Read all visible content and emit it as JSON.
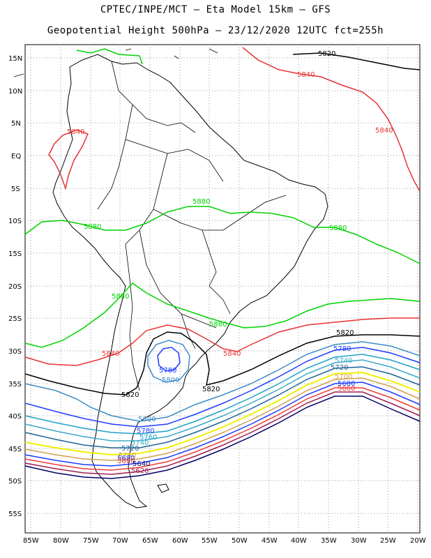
{
  "header": {
    "line1": "CPTEC/INPE/MCT —  Eta Model 15km — GFS",
    "line2": "Geopotential Height 500hPa — 23/12/2020 12UTC fct=255h"
  },
  "axes": {
    "lat_ticks": [
      "15N",
      "10N",
      "5N",
      "EQ",
      "5S",
      "10S",
      "15S",
      "20S",
      "25S",
      "30S",
      "35S",
      "40S",
      "45S",
      "50S",
      "55S"
    ],
    "lon_ticks": [
      "85W",
      "80W",
      "75W",
      "70W",
      "65W",
      "60W",
      "55W",
      "50W",
      "45W",
      "40W",
      "35W",
      "30W",
      "25W",
      "20W"
    ]
  },
  "colors": {
    "c5880": "#00d200",
    "c5840": "#e63232",
    "c5820": "#000000",
    "c5800": "#3c8cc8",
    "c5780": "#1e3cff",
    "c5760": "#1ea0c8",
    "c5740": "#3caac8",
    "c5720": "#f0f000",
    "c5700": "#d2a050",
    "c5680": "#f03c3c",
    "c5660": "#a01e50",
    "c5640": "#000064",
    "land": "#000000"
  },
  "labels": {
    "l5820_n": "5820",
    "l5840_n": "5840",
    "l5840_e": "5840",
    "l5840_w": "5840",
    "l5880_a": "5880",
    "l5880_b": "5880",
    "l5880_c": "5880",
    "l5880_d": "5880",
    "l5880_e": "5880",
    "l5820_s": "5820",
    "l5780_e": "5780",
    "l5740_e": "5740",
    "l5720_e": "5720",
    "l5700_e": "5700",
    "l5680_e": "5680",
    "l5660_e": "5660",
    "l5840_c": "5840",
    "l5840_sw": "5840",
    "l5780_low": "5780",
    "l5800_low": "5800",
    "l5820_c": "5820",
    "l5820_w": "5820",
    "l5800_w": "5800",
    "l5780_w": "5780",
    "l5760_w": "5760",
    "l5740_w": "5740",
    "l5720_w": "5720",
    "l5700_w": "5700",
    "l5680_w": "5680",
    "l5660_w": "5660",
    "l5640_w": "5640",
    "l5620_w": "5620"
  }
}
